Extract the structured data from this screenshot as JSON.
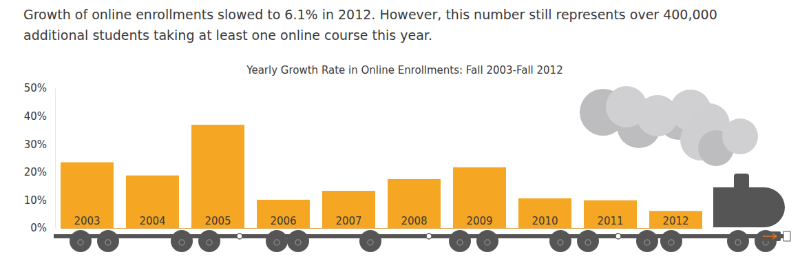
{
  "chart_data": {
    "type": "bar",
    "subtitle": [
      "Growth of online enrollments slowed to 6.1% in 2012. However, this number still represents over 400,000",
      "additional students taking at least one online course this year."
    ],
    "title": "Yearly Growth Rate in Online Enrollments: Fall 2003-Fall 2012",
    "categories": [
      "2003",
      "2004",
      "2005",
      "2006",
      "2007",
      "2008",
      "2009",
      "2010",
      "2011",
      "2012"
    ],
    "values": [
      23.5,
      18.8,
      36.9,
      10.1,
      13.3,
      17.5,
      21.7,
      10.6,
      9.9,
      6.1
    ],
    "color": "#f5a623",
    "ylim": [
      0,
      50
    ],
    "yticks": [
      {
        "value": 0,
        "label": "0%"
      },
      {
        "value": 10,
        "label": "10%"
      },
      {
        "value": 20,
        "label": "20%"
      },
      {
        "value": 30,
        "label": "30%"
      },
      {
        "value": 40,
        "label": "40%"
      },
      {
        "value": 50,
        "label": "50%"
      }
    ],
    "grid": false
  }
}
